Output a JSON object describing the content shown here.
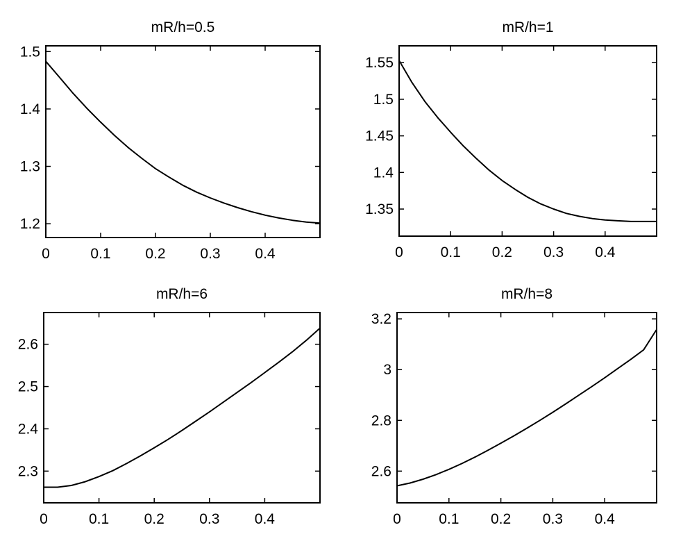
{
  "chart_data": [
    {
      "type": "line",
      "title": "mR/h=0.5",
      "xlim": [
        0,
        0.5
      ],
      "ylim": [
        1.176,
        1.51
      ],
      "xticks": [
        0,
        0.1,
        0.2,
        0.3,
        0.4
      ],
      "xtick_labels": [
        "0",
        "0.1",
        "0.2",
        "0.3",
        "0.4"
      ],
      "yticks": [
        1.2,
        1.3,
        1.4,
        1.5
      ],
      "ytick_labels": [
        "1.2",
        "1.3",
        "1.4",
        "1.5"
      ],
      "grid": false,
      "series": [
        {
          "x": [
            0,
            0.025,
            0.05,
            0.075,
            0.1,
            0.125,
            0.15,
            0.175,
            0.2,
            0.225,
            0.25,
            0.275,
            0.3,
            0.325,
            0.35,
            0.375,
            0.4,
            0.425,
            0.45,
            0.475,
            0.5
          ],
          "y": [
            1.483,
            1.455,
            1.427,
            1.401,
            1.377,
            1.354,
            1.333,
            1.314,
            1.296,
            1.281,
            1.267,
            1.255,
            1.245,
            1.236,
            1.228,
            1.221,
            1.215,
            1.21,
            1.206,
            1.203,
            1.201
          ]
        }
      ]
    },
    {
      "type": "line",
      "title": "mR/h=1",
      "xlim": [
        0,
        0.5
      ],
      "ylim": [
        1.313,
        1.573
      ],
      "xticks": [
        0,
        0.1,
        0.2,
        0.3,
        0.4
      ],
      "xtick_labels": [
        "0",
        "0.1",
        "0.2",
        "0.3",
        "0.4"
      ],
      "yticks": [
        1.35,
        1.4,
        1.45,
        1.5,
        1.55
      ],
      "ytick_labels": [
        "1.35",
        "1.4",
        "1.45",
        "1.5",
        "1.55"
      ],
      "grid": false,
      "series": [
        {
          "x": [
            0,
            0.025,
            0.05,
            0.075,
            0.1,
            0.125,
            0.15,
            0.175,
            0.2,
            0.225,
            0.25,
            0.275,
            0.3,
            0.325,
            0.35,
            0.375,
            0.4,
            0.425,
            0.45,
            0.475,
            0.5
          ],
          "y": [
            1.553,
            1.523,
            1.497,
            1.475,
            1.455,
            1.436,
            1.419,
            1.403,
            1.389,
            1.377,
            1.366,
            1.357,
            1.35,
            1.344,
            1.34,
            1.337,
            1.335,
            1.334,
            1.333,
            1.333,
            1.333
          ]
        }
      ]
    },
    {
      "type": "line",
      "title": "mR/h=6",
      "xlim": [
        0,
        0.5
      ],
      "ylim": [
        2.225,
        2.675
      ],
      "xticks": [
        0,
        0.1,
        0.2,
        0.3,
        0.4
      ],
      "xtick_labels": [
        "0",
        "0.1",
        "0.2",
        "0.3",
        "0.4"
      ],
      "yticks": [
        2.3,
        2.4,
        2.5,
        2.6
      ],
      "ytick_labels": [
        "2.3",
        "2.4",
        "2.5",
        "2.6"
      ],
      "grid": false,
      "series": [
        {
          "x": [
            0,
            0.025,
            0.05,
            0.075,
            0.1,
            0.125,
            0.15,
            0.175,
            0.2,
            0.225,
            0.25,
            0.275,
            0.3,
            0.325,
            0.35,
            0.375,
            0.4,
            0.425,
            0.45,
            0.475,
            0.5
          ],
          "y": [
            2.262,
            2.262,
            2.266,
            2.275,
            2.287,
            2.301,
            2.318,
            2.336,
            2.355,
            2.375,
            2.396,
            2.418,
            2.44,
            2.463,
            2.486,
            2.509,
            2.533,
            2.557,
            2.582,
            2.609,
            2.638
          ]
        }
      ]
    },
    {
      "type": "line",
      "title": "mR/h=8",
      "xlim": [
        0,
        0.5
      ],
      "ylim": [
        2.475,
        3.225
      ],
      "xticks": [
        0,
        0.1,
        0.2,
        0.3,
        0.4
      ],
      "xtick_labels": [
        "0",
        "0.1",
        "0.2",
        "0.3",
        "0.4"
      ],
      "yticks": [
        2.6,
        2.8,
        3.0,
        3.2
      ],
      "ytick_labels": [
        "2.6",
        "2.8",
        "3",
        "3.2"
      ],
      "grid": false,
      "series": [
        {
          "x": [
            0,
            0.025,
            0.05,
            0.075,
            0.1,
            0.125,
            0.15,
            0.175,
            0.2,
            0.225,
            0.25,
            0.275,
            0.3,
            0.325,
            0.35,
            0.375,
            0.4,
            0.425,
            0.45,
            0.475,
            0.5
          ],
          "y": [
            2.542,
            2.553,
            2.568,
            2.586,
            2.607,
            2.63,
            2.655,
            2.682,
            2.71,
            2.739,
            2.769,
            2.8,
            2.832,
            2.865,
            2.899,
            2.933,
            2.968,
            3.004,
            3.04,
            3.078,
            3.158
          ]
        }
      ]
    }
  ]
}
